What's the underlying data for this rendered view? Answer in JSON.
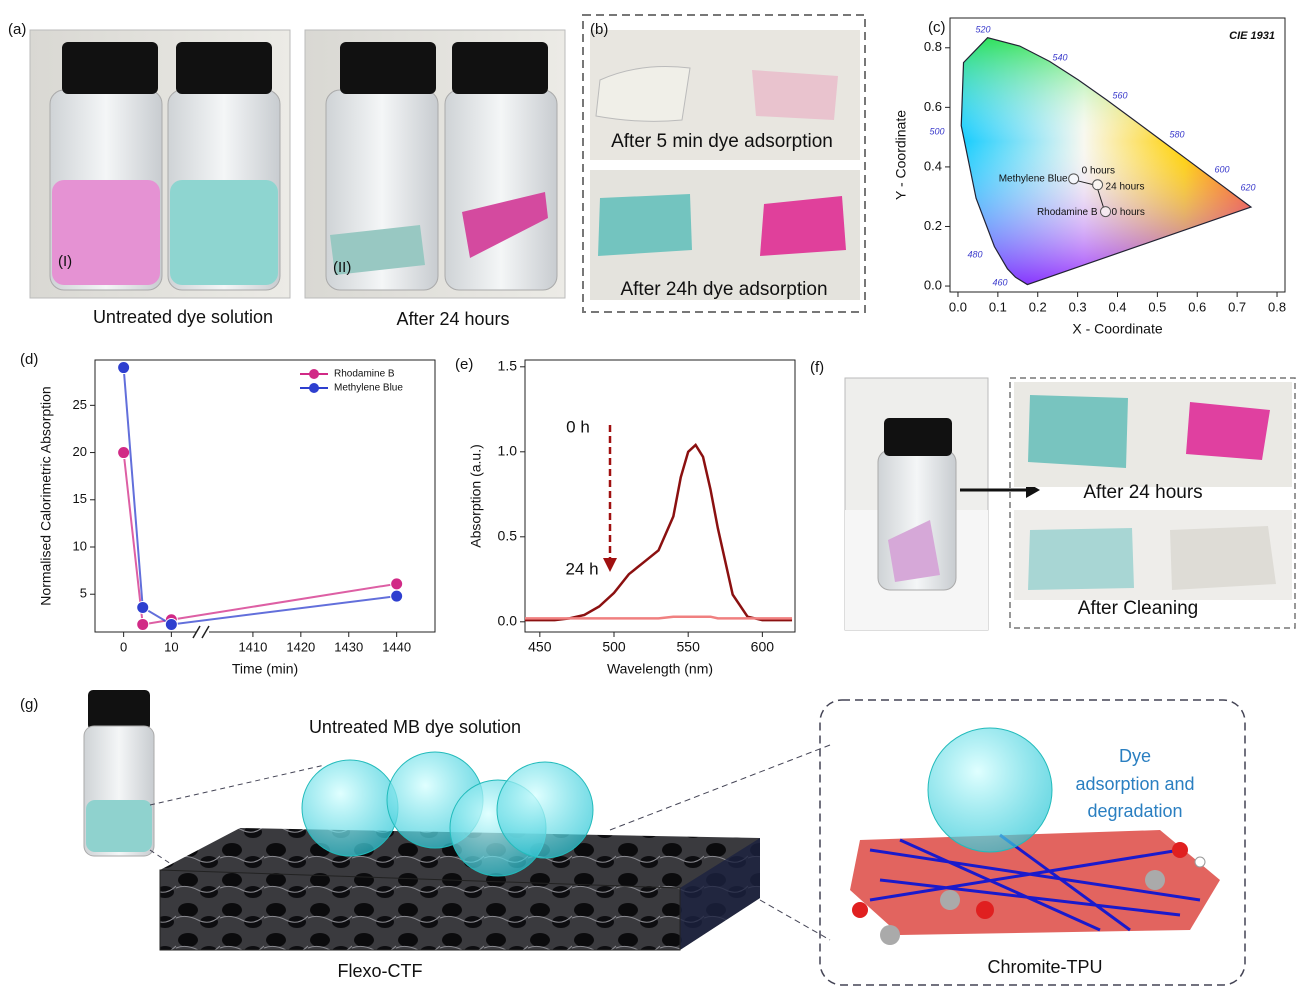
{
  "panels": {
    "a": "(a)",
    "b": "(b)",
    "c": "(c)",
    "d": "(d)",
    "e": "(e)",
    "f": "(f)",
    "g": "(g)"
  },
  "photo_text": {
    "a_vial_1": "(I)",
    "a_vial_2": "(II)",
    "a_caption_1": "Untreated dye solution",
    "a_caption_2": "After 24 hours",
    "b_top": "After 5 min dye adsorption",
    "b_bottom": "After 24h dye adsorption",
    "f_top": "After 24 hours",
    "f_bottom": "After Cleaning",
    "g_title": "Untreated MB dye solution",
    "g_left": "Flexo-CTF",
    "g_right": "Chromite-TPU",
    "g_note": [
      "Dye",
      "adsorption and",
      "degradation"
    ]
  },
  "chart_data": [
    {
      "type": "cie",
      "title": "CIE 1931",
      "x_label": "X - Coordinate",
      "y_label": "Y - Coordinate",
      "xlim": [
        -0.02,
        0.82
      ],
      "ylim": [
        -0.02,
        0.9
      ],
      "xticks": [
        {
          "value": 0,
          "label": "0.0"
        },
        0.1,
        0.2,
        0.3,
        0.4,
        0.5,
        0.6,
        0.7,
        0.8
      ],
      "yticks": [
        {
          "value": 0,
          "label": "0.0"
        },
        0.2,
        0.4,
        0.6,
        0.8
      ],
      "locus_labels": [
        520,
        540,
        560,
        580,
        600,
        620,
        500,
        480,
        460
      ],
      "points": [
        {
          "label": "0 hours",
          "x": 0.29,
          "y": 0.36
        },
        {
          "label": "24 hours",
          "x": 0.35,
          "y": 0.34
        },
        {
          "label": "0 hours",
          "x": 0.37,
          "y": 0.25
        }
      ],
      "annotations": [
        "Methylene Blue",
        "Rhodamine B"
      ]
    },
    {
      "type": "line",
      "x_label": "Time (min)",
      "y_label": "Normalised Calorimetric Absorption",
      "x": [
        0,
        4,
        10,
        1440
      ],
      "x_segments": [
        [
          -6,
          16
        ],
        [
          1400,
          1448
        ]
      ],
      "xticks": [
        0,
        10,
        1410,
        1420,
        1430,
        1440
      ],
      "ylim": [
        1,
        29.8
      ],
      "yticks": [
        5,
        10,
        15,
        20,
        25
      ],
      "legend": "upper right",
      "series": [
        {
          "name": "Rhodamine B",
          "color": "#d12a86",
          "values": [
            20,
            1.8,
            2.3,
            6.1
          ]
        },
        {
          "name": "Methylene Blue",
          "color": "#2e3fcf",
          "values": [
            29,
            3.6,
            1.8,
            4.8
          ]
        }
      ]
    },
    {
      "type": "line",
      "x_label": "Wavelength (nm)",
      "y_label": "Absorption (a.u.)",
      "x": [
        440,
        450,
        460,
        470,
        480,
        490,
        500,
        510,
        520,
        530,
        540,
        545,
        550,
        555,
        560,
        565,
        570,
        580,
        590,
        600,
        610,
        620
      ],
      "xlim": [
        440,
        622
      ],
      "xticks": [
        450,
        500,
        550,
        600
      ],
      "ylim": [
        -0.06,
        1.54
      ],
      "yticks": [
        {
          "value": 0,
          "label": "0.0"
        },
        0.5,
        {
          "value": 1,
          "label": "1.0"
        },
        1.5
      ],
      "series": [
        {
          "color": "#8b1010",
          "values": [
            0.01,
            0.01,
            0.01,
            0.02,
            0.04,
            0.09,
            0.17,
            0.28,
            0.35,
            0.42,
            0.62,
            0.85,
            1.0,
            1.04,
            0.97,
            0.78,
            0.55,
            0.16,
            0.03,
            0.01,
            0.01,
            0.01
          ]
        },
        {
          "color": "#f08080",
          "values": [
            0.02,
            0.02,
            0.02,
            0.02,
            0.02,
            0.02,
            0.02,
            0.02,
            0.02,
            0.02,
            0.03,
            0.03,
            0.03,
            0.03,
            0.03,
            0.03,
            0.02,
            0.02,
            0.02,
            0.02,
            0.02,
            0.02
          ]
        }
      ],
      "annotations": [
        "0 h",
        "24 h"
      ]
    }
  ]
}
